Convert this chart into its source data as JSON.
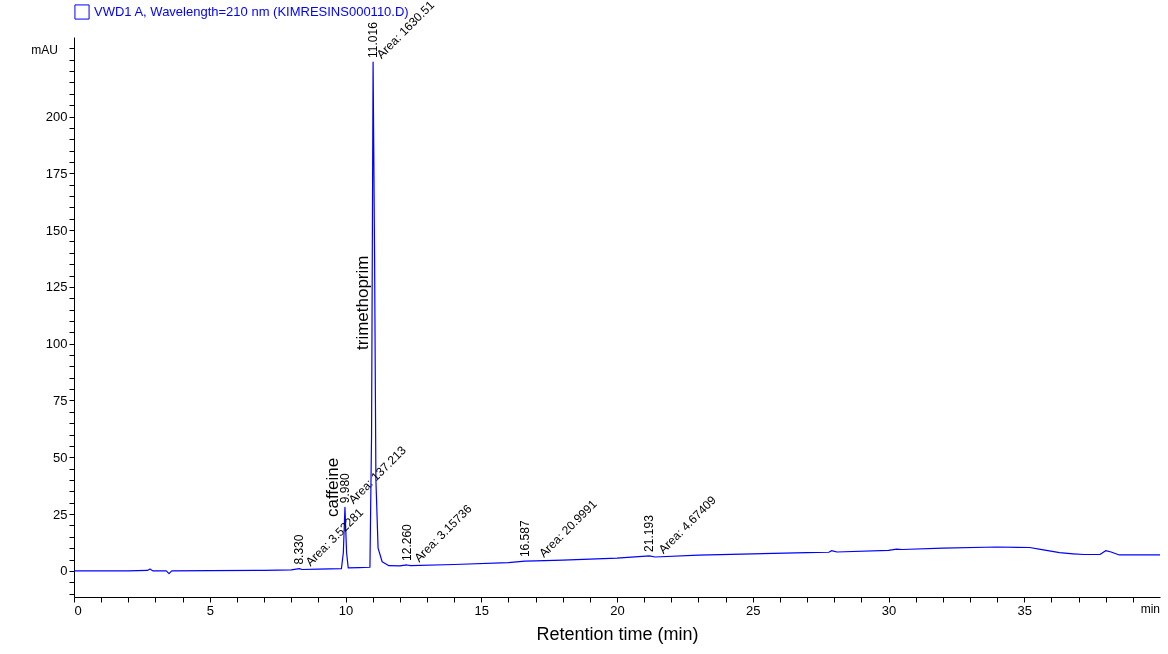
{
  "chart_data": {
    "type": "line",
    "xlabel": "Retention time (min)",
    "ylabel": "mAU",
    "legend": "top left",
    "grid": false,
    "xlim": [
      0,
      40
    ],
    "ylim": [
      -11.5,
      235
    ],
    "xticks": [
      0,
      {
        "value": 1,
        "label": null
      },
      {
        "value": 2,
        "label": null
      },
      {
        "value": 3,
        "label": null
      },
      {
        "value": 4,
        "label": null
      },
      5,
      {
        "value": 6,
        "label": null
      },
      {
        "value": 7,
        "label": null
      },
      {
        "value": 8,
        "label": null
      },
      {
        "value": 9,
        "label": null
      },
      10,
      {
        "value": 11,
        "label": null
      },
      {
        "value": 12,
        "label": null
      },
      {
        "value": 13,
        "label": null
      },
      {
        "value": 14,
        "label": null
      },
      15,
      {
        "value": 16,
        "label": null
      },
      {
        "value": 17,
        "label": null
      },
      {
        "value": 18,
        "label": null
      },
      {
        "value": 19,
        "label": null
      },
      20,
      {
        "value": 21,
        "label": null
      },
      {
        "value": 22,
        "label": null
      },
      {
        "value": 23,
        "label": null
      },
      {
        "value": 24,
        "label": null
      },
      25,
      {
        "value": 26,
        "label": null
      },
      {
        "value": 27,
        "label": null
      },
      {
        "value": 28,
        "label": null
      },
      {
        "value": 29,
        "label": null
      },
      30,
      {
        "value": 31,
        "label": null
      },
      {
        "value": 32,
        "label": null
      },
      {
        "value": 33,
        "label": null
      },
      {
        "value": 34,
        "label": null
      },
      35,
      {
        "value": 36,
        "label": null
      },
      {
        "value": 37,
        "label": null
      },
      {
        "value": 38,
        "label": null
      },
      {
        "value": 39,
        "label": null
      }
    ],
    "yticks": [
      {
        "value": -10,
        "label": null
      },
      {
        "value": -5,
        "label": null
      },
      0,
      {
        "value": 5,
        "label": null
      },
      {
        "value": 10,
        "label": null
      },
      {
        "value": 15,
        "label": null
      },
      {
        "value": 20,
        "label": null
      },
      25,
      {
        "value": 30,
        "label": null
      },
      {
        "value": 35,
        "label": null
      },
      {
        "value": 40,
        "label": null
      },
      {
        "value": 45,
        "label": null
      },
      50,
      {
        "value": 55,
        "label": null
      },
      {
        "value": 60,
        "label": null
      },
      {
        "value": 65,
        "label": null
      },
      {
        "value": 70,
        "label": null
      },
      75,
      {
        "value": 80,
        "label": null
      },
      {
        "value": 85,
        "label": null
      },
      {
        "value": 90,
        "label": null
      },
      {
        "value": 95,
        "label": null
      },
      100,
      {
        "value": 105,
        "label": null
      },
      {
        "value": 110,
        "label": null
      },
      {
        "value": 115,
        "label": null
      },
      {
        "value": 120,
        "label": null
      },
      125,
      {
        "value": 130,
        "label": null
      },
      {
        "value": 135,
        "label": null
      },
      {
        "value": 140,
        "label": null
      },
      {
        "value": 145,
        "label": null
      },
      150,
      {
        "value": 155,
        "label": null
      },
      {
        "value": 160,
        "label": null
      },
      {
        "value": 165,
        "label": null
      },
      {
        "value": 170,
        "label": null
      },
      175,
      {
        "value": 180,
        "label": null
      },
      {
        "value": 185,
        "label": null
      },
      {
        "value": 190,
        "label": null
      },
      {
        "value": 195,
        "label": null
      },
      200,
      {
        "value": 205,
        "label": null
      },
      {
        "value": 210,
        "label": null
      },
      {
        "value": 215,
        "label": null
      },
      {
        "value": 220,
        "label": null
      },
      {
        "value": 225,
        "label": null
      },
      {
        "value": 230,
        "label": null
      }
    ],
    "series": [
      {
        "name": "VWD1 A, Wavelength=210 nm (KIMRESINS000110.D)",
        "color": "#0000ff",
        "x": [
          0,
          1,
          2,
          2.7,
          2.8,
          2.9,
          3.4,
          3.5,
          3.6,
          5,
          7,
          8,
          8.3,
          8.4,
          9,
          9.85,
          9.92,
          9.98,
          10.04,
          10.1,
          10.5,
          10.9,
          10.96,
          11.016,
          11.07,
          11.12,
          11.2,
          11.35,
          11.6,
          12,
          12.26,
          12.4,
          14,
          16,
          16.6,
          17,
          18,
          20,
          21.193,
          21.4,
          23,
          25,
          27,
          27.8,
          27.9,
          28.1,
          30,
          30.3,
          30.5,
          32,
          34,
          35.2,
          35.6,
          36.3,
          36.8,
          37.2,
          37.8,
          38,
          38.2,
          38.5,
          40
        ],
        "values": [
          0,
          0,
          0,
          0.2,
          0.8,
          0,
          0,
          -1.2,
          0,
          0.1,
          0.2,
          0.4,
          1.0,
          0.6,
          0.8,
          1.0,
          8,
          28,
          8,
          1.3,
          1.4,
          1.6,
          60,
          224,
          140,
          40,
          10,
          4,
          2.3,
          2.2,
          2.6,
          2.3,
          2.8,
          3.6,
          4.3,
          4.4,
          4.7,
          5.6,
          6.6,
          6.1,
          6.9,
          7.5,
          8.0,
          8.2,
          8.9,
          8.3,
          9.0,
          9.6,
          9.4,
          10.0,
          10.5,
          10.3,
          9.5,
          8.0,
          7.5,
          7.2,
          7.3,
          8.9,
          8.3,
          7.0,
          7.0
        ]
      }
    ],
    "annotations": [
      "caffeine",
      "trimethoprim",
      "min",
      {
        "text": "8.330",
        "x": 8.3,
        "y": 1.0
      },
      {
        "text": "Area: 3.52281",
        "x": 8.4,
        "y": 0.6
      },
      {
        "text": "9.980",
        "x": 9.98,
        "y": 28
      },
      {
        "text": "Area: 137.213",
        "x": 9.98,
        "y": 28
      },
      {
        "text": "11.016",
        "x": 11.016,
        "y": 224
      },
      {
        "text": "Area: 1630.51",
        "x": 11.016,
        "y": 224
      },
      {
        "text": "12.260",
        "x": 12.26,
        "y": 2.6
      },
      {
        "text": "Area: 3.15736",
        "x": 12.4,
        "y": 2.3
      },
      {
        "text": "16.587",
        "x": 16.6,
        "y": 4.3
      },
      {
        "text": "Area: 20.9991",
        "x": 17,
        "y": 4.4
      },
      {
        "text": "21.193",
        "x": 21.193,
        "y": 6.6
      },
      {
        "text": "Area: 4.67409",
        "x": 21.4,
        "y": 6.1
      }
    ]
  }
}
